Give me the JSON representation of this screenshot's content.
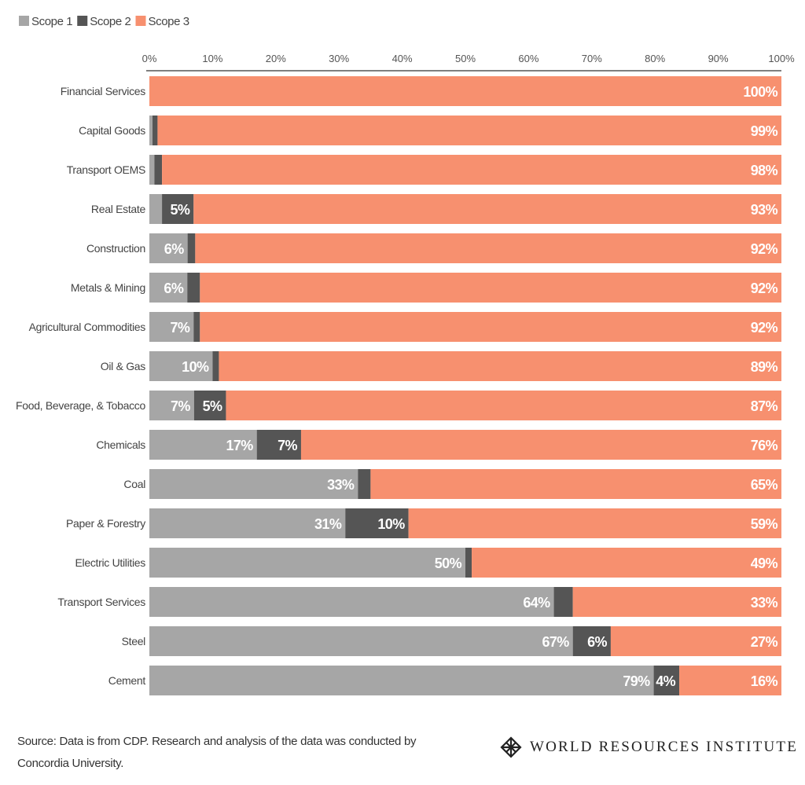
{
  "chart_data": {
    "type": "bar",
    "orientation": "horizontal",
    "stacked": true,
    "legend_position": "top-left",
    "grid": false,
    "xlim": [
      0,
      100
    ],
    "x_ticks": [
      "0%",
      "10%",
      "20%",
      "30%",
      "40%",
      "50%",
      "60%",
      "70%",
      "80%",
      "90%",
      "100%"
    ],
    "categories": [
      "Financial Services",
      "Capital Goods",
      "Transport OEMS",
      "Real Estate",
      "Construction",
      "Metals & Mining",
      "Agricultural Commodities",
      "Oil & Gas",
      "Food, Beverage, & Tobacco",
      "Chemicals",
      "Coal",
      "Paper & Forestry",
      "Electric Utilities",
      "Transport Services",
      "Steel",
      "Cement"
    ],
    "series": [
      {
        "name": "Scope 1",
        "color": "#a6a6a6",
        "values": [
          0,
          0.5,
          0.8,
          2,
          6,
          6,
          7,
          10,
          7,
          17,
          33,
          31,
          50,
          64,
          67,
          79
        ],
        "labels": [
          null,
          null,
          null,
          null,
          "6%",
          "6%",
          "7%",
          "10%",
          "7%",
          "17%",
          "33%",
          "31%",
          "50%",
          "64%",
          "67%",
          "79%"
        ]
      },
      {
        "name": "Scope 2",
        "color": "#555555",
        "values": [
          0,
          0.8,
          1.2,
          5,
          1.2,
          2,
          1,
          1,
          5,
          7,
          2,
          10,
          1,
          3,
          6,
          4
        ],
        "labels": [
          null,
          null,
          null,
          "5%",
          null,
          null,
          null,
          null,
          "5%",
          "7%",
          null,
          "10%",
          null,
          null,
          "6%",
          "4%"
        ]
      },
      {
        "name": "Scope 3",
        "color": "#f7906f",
        "values": [
          100,
          99,
          98,
          93,
          92,
          92,
          92,
          89,
          87,
          76,
          65,
          59,
          49,
          33,
          27,
          16
        ],
        "labels": [
          "100%",
          "99%",
          "98%",
          "93%",
          "92%",
          "92%",
          "92%",
          "89%",
          "87%",
          "76%",
          "65%",
          "59%",
          "49%",
          "33%",
          "27%",
          "16%"
        ]
      }
    ]
  },
  "footer": {
    "source_line1": "Source: Data is from CDP. Research and analysis of the data was conducted by",
    "source_line2": "Concordia University.",
    "logo_text": "WORLD RESOURCES INSTITUTE"
  }
}
